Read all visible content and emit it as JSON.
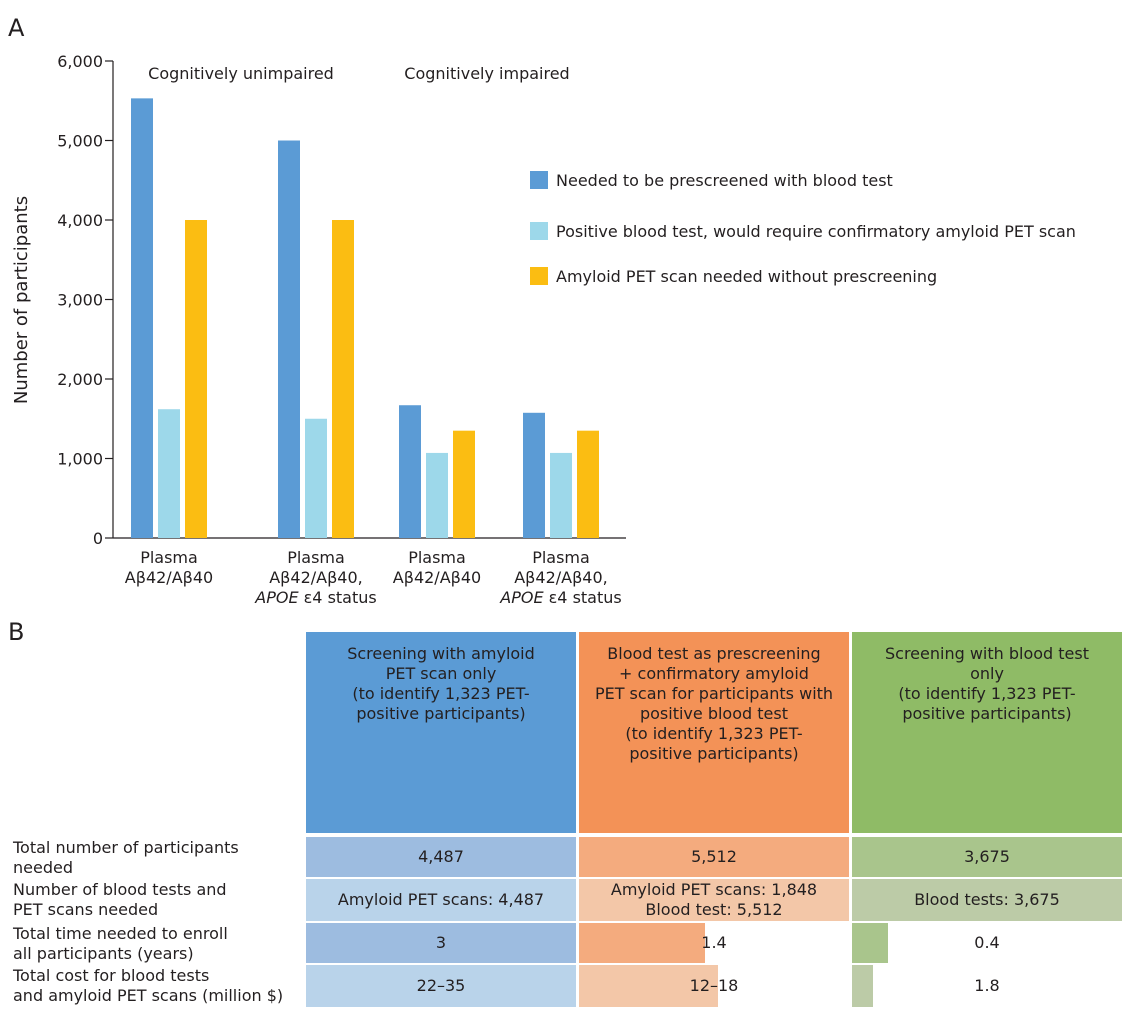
{
  "panel_a_label": "A",
  "panel_b_label": "B",
  "chart_data": {
    "type": "bar",
    "ylabel": "Number of participants",
    "ylim": [
      0,
      6000
    ],
    "yticks": [
      "0",
      "1,000",
      "2,000",
      "3,000",
      "4,000",
      "5,000",
      "6,000"
    ],
    "group_titles": [
      "Cognitively unimpaired",
      "Cognitively impaired"
    ],
    "categories": [
      {
        "line1": "Plasma",
        "line2": "Aβ42/Aβ40",
        "line3a": "",
        "line3b": ""
      },
      {
        "line1": "Plasma",
        "line2": "Aβ42/Aβ40,",
        "line3a": "APOE",
        "line3b": " ε4 status"
      },
      {
        "line1": "Plasma",
        "line2": "Aβ42/Aβ40",
        "line3a": "",
        "line3b": ""
      },
      {
        "line1": "Plasma",
        "line2": "Aβ42/Aβ40,",
        "line3a": "APOE",
        "line3b": " ε4 status"
      }
    ],
    "series": [
      {
        "name": "Needed to be prescreened with blood test",
        "color": "#5b9bd5",
        "values": [
          5530,
          5000,
          1670,
          1575
        ]
      },
      {
        "name": "Positive blood test, would require confirmatory amyloid PET scan",
        "color": "#9dd8ea",
        "values": [
          1620,
          1500,
          1070,
          1070
        ]
      },
      {
        "name": "Amyloid PET scan needed without prescreening",
        "color": "#fbbd12",
        "values": [
          4000,
          4000,
          1350,
          1350
        ]
      }
    ],
    "legend_position": "right"
  },
  "table": {
    "columns": [
      {
        "header": "Screening with amyloid\nPET scan only\n(to identify 1,323 PET-\npositive participants)",
        "head_color": "#5b9bd5"
      },
      {
        "header": "Blood test as prescreening\n+ confirmatory amyloid\nPET scan for participants with\npositive blood test\n(to identify 1,323 PET-\npositive participants)",
        "head_color": "#f39257"
      },
      {
        "header": "Screening with blood test\nonly\n(to identify 1,323 PET-\npositive participants)",
        "head_color": "#8fbb66"
      }
    ],
    "rows": [
      {
        "label": "Total number of participants\nneeded",
        "cells": [
          "4,487",
          "5,512",
          "3,675"
        ],
        "colors": [
          "#9dbce0",
          "#f4ab7e",
          "#a9c58c"
        ]
      },
      {
        "label": "Number of blood tests and\nPET scans needed",
        "cells": [
          "Amyloid PET scans: 4,487",
          "Amyloid PET scans: 1,848\nBlood test: 5,512",
          "Blood tests: 3,675"
        ],
        "colors": [
          "#b9d3ea",
          "#f3c7a8",
          "#bccba7"
        ]
      },
      {
        "label": "Total time needed to enroll\nall participants (years)",
        "cells": [
          "3",
          "1.4",
          "0.4"
        ],
        "colors": [
          "#9dbce0",
          "#f4ab7e",
          "#a9c58c"
        ],
        "fractions": [
          1.0,
          0.4667,
          0.1333
        ]
      },
      {
        "label": "Total cost for blood tests\nand amyloid PET scans (million $)",
        "cells": [
          "22–35",
          "12–18",
          "1.8"
        ],
        "colors": [
          "#b9d3ea",
          "#f3c7a8",
          "#bccba7"
        ],
        "fractions": [
          1.0,
          0.514,
          0.077
        ]
      }
    ]
  }
}
